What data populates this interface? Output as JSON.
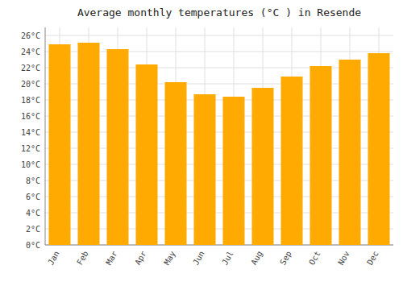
{
  "chart_data": {
    "type": "bar",
    "title": "Average monthly temperatures (°C ) in Resende",
    "categories": [
      "Jan",
      "Feb",
      "Mar",
      "Apr",
      "May",
      "Jun",
      "Jul",
      "Aug",
      "Sep",
      "Oct",
      "Nov",
      "Dec"
    ],
    "values": [
      24.9,
      25.1,
      24.3,
      22.4,
      20.2,
      18.7,
      18.4,
      19.5,
      20.9,
      22.2,
      23.0,
      23.8
    ],
    "color": "#FFAA00",
    "ylim": [
      0,
      27
    ],
    "yticks": [
      {
        "value": 0,
        "label": "0°C"
      },
      {
        "value": 2,
        "label": "2°C"
      },
      {
        "value": 4,
        "label": "4°C"
      },
      {
        "value": 6,
        "label": "6°C"
      },
      {
        "value": 8,
        "label": "8°C"
      },
      {
        "value": 10,
        "label": "10°C"
      },
      {
        "value": 12,
        "label": "12°C"
      },
      {
        "value": 14,
        "label": "14°C"
      },
      {
        "value": 16,
        "label": "16°C"
      },
      {
        "value": 18,
        "label": "18°C"
      },
      {
        "value": 20,
        "label": "20°C"
      },
      {
        "value": 22,
        "label": "22°C"
      },
      {
        "value": 24,
        "label": "24°C"
      },
      {
        "value": 26,
        "label": "26°C"
      }
    ],
    "grid": true
  }
}
